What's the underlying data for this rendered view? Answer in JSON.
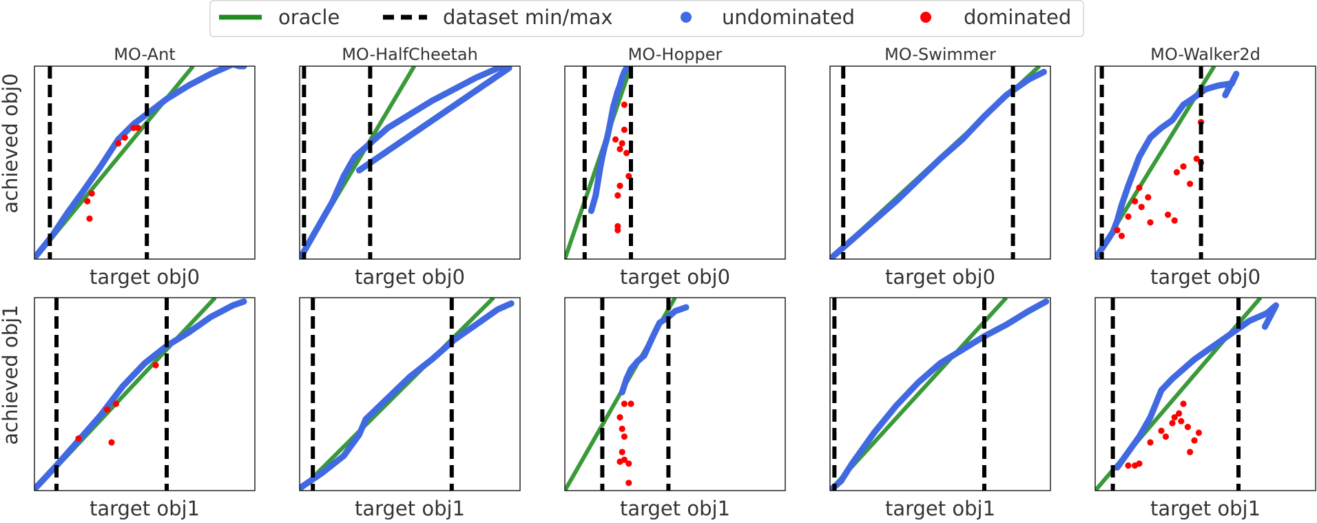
{
  "colors": {
    "oracle": "#3a9a3a",
    "minmax": "#000000",
    "undominated": "#4169e1",
    "dominated": "#ff0000",
    "frame": "#000000"
  },
  "legend": {
    "items": [
      {
        "label": "oracle",
        "marker": "line",
        "color": "#1f8a1f"
      },
      {
        "label": "dataset min/max",
        "marker": "dashed-line",
        "color": "#000000"
      },
      {
        "label": "undominated",
        "marker": "dot",
        "color": "#4169e1"
      },
      {
        "label": "dominated",
        "marker": "dot",
        "color": "#ff0000"
      }
    ]
  },
  "row_labels": [
    "achieved obj0",
    "achieved obj1"
  ],
  "chart_data": [
    {
      "type": "scatter",
      "title": "MO-Ant",
      "xlabel": "target obj0",
      "ylabel": "achieved obj0",
      "xlim": [
        0,
        1
      ],
      "ylim": [
        0,
        1
      ],
      "minmax": [
        0.07,
        0.51
      ],
      "oracle": [
        [
          0,
          0
        ],
        [
          0.72,
          1
        ]
      ],
      "undominated": [
        [
          0.01,
          0.02
        ],
        [
          0.08,
          0.12
        ],
        [
          0.15,
          0.24
        ],
        [
          0.22,
          0.35
        ],
        [
          0.3,
          0.48
        ],
        [
          0.38,
          0.62
        ],
        [
          0.45,
          0.7
        ],
        [
          0.52,
          0.76
        ],
        [
          0.6,
          0.83
        ],
        [
          0.7,
          0.9
        ],
        [
          0.8,
          0.96
        ],
        [
          0.9,
          1.01
        ],
        [
          0.93,
          1.0
        ],
        [
          0.95,
          1.0
        ]
      ],
      "dominated": [
        [
          0.24,
          0.3
        ],
        [
          0.26,
          0.34
        ],
        [
          0.38,
          0.6
        ],
        [
          0.41,
          0.63
        ],
        [
          0.45,
          0.68
        ],
        [
          0.47,
          0.68
        ],
        [
          0.25,
          0.21
        ]
      ]
    },
    {
      "type": "scatter",
      "title": "MO-HalfCheetah",
      "xlabel": "target obj0",
      "ylabel": "",
      "xlim": [
        0,
        1
      ],
      "ylim": [
        0,
        1
      ],
      "minmax": [
        0.02,
        0.32
      ],
      "oracle": [
        [
          0,
          0
        ],
        [
          0.52,
          1
        ]
      ],
      "undominated": [
        [
          0.01,
          0.02
        ],
        [
          0.05,
          0.1
        ],
        [
          0.1,
          0.2
        ],
        [
          0.15,
          0.3
        ],
        [
          0.2,
          0.43
        ],
        [
          0.25,
          0.53
        ],
        [
          0.3,
          0.58
        ],
        [
          0.4,
          0.68
        ],
        [
          0.5,
          0.75
        ],
        [
          0.6,
          0.82
        ],
        [
          0.7,
          0.88
        ],
        [
          0.8,
          0.94
        ],
        [
          0.9,
          0.99
        ],
        [
          0.95,
          0.99
        ],
        [
          0.27,
          0.46
        ]
      ],
      "dominated": []
    },
    {
      "type": "scatter",
      "title": "MO-Hopper",
      "xlabel": "target obj0",
      "ylabel": "",
      "xlim": [
        0,
        1
      ],
      "ylim": [
        0,
        1
      ],
      "minmax": [
        0.09,
        0.3
      ],
      "oracle": [
        [
          0,
          0
        ],
        [
          0.3,
          1
        ]
      ],
      "undominated": [
        [
          0.12,
          0.25
        ],
        [
          0.14,
          0.33
        ],
        [
          0.15,
          0.4
        ],
        [
          0.16,
          0.47
        ],
        [
          0.17,
          0.53
        ],
        [
          0.18,
          0.58
        ],
        [
          0.19,
          0.62
        ],
        [
          0.2,
          0.67
        ],
        [
          0.21,
          0.73
        ],
        [
          0.22,
          0.79
        ],
        [
          0.23,
          0.83
        ],
        [
          0.24,
          0.87
        ],
        [
          0.25,
          0.9
        ],
        [
          0.26,
          0.94
        ],
        [
          0.27,
          0.97
        ],
        [
          0.28,
          0.99
        ]
      ],
      "dominated": [
        [
          0.23,
          0.62
        ],
        [
          0.25,
          0.57
        ],
        [
          0.26,
          0.6
        ],
        [
          0.27,
          0.67
        ],
        [
          0.28,
          0.55
        ],
        [
          0.25,
          0.38
        ],
        [
          0.24,
          0.33
        ],
        [
          0.29,
          0.43
        ],
        [
          0.24,
          0.17
        ],
        [
          0.24,
          0.15
        ],
        [
          0.27,
          0.8
        ]
      ]
    },
    {
      "type": "scatter",
      "title": "MO-Swimmer",
      "xlabel": "target obj0",
      "ylabel": "",
      "xlim": [
        0,
        1
      ],
      "ylim": [
        0,
        1
      ],
      "minmax": [
        0.06,
        0.83
      ],
      "oracle": [
        [
          0,
          0
        ],
        [
          0.95,
          1
        ]
      ],
      "undominated": [
        [
          0.01,
          0.01
        ],
        [
          0.1,
          0.1
        ],
        [
          0.2,
          0.2
        ],
        [
          0.3,
          0.3
        ],
        [
          0.4,
          0.41
        ],
        [
          0.5,
          0.52
        ],
        [
          0.6,
          0.62
        ],
        [
          0.7,
          0.74
        ],
        [
          0.8,
          0.85
        ],
        [
          0.9,
          0.93
        ],
        [
          0.97,
          0.97
        ]
      ],
      "dominated": []
    },
    {
      "type": "scatter",
      "title": "MO-Walker2d",
      "xlabel": "target obj0",
      "ylabel": "",
      "xlim": [
        0,
        1
      ],
      "ylim": [
        0,
        1
      ],
      "minmax": [
        0.03,
        0.48
      ],
      "oracle": [
        [
          0,
          0
        ],
        [
          0.54,
          1
        ]
      ],
      "undominated": [
        [
          0.01,
          0.02
        ],
        [
          0.04,
          0.07
        ],
        [
          0.08,
          0.14
        ],
        [
          0.1,
          0.2
        ],
        [
          0.12,
          0.28
        ],
        [
          0.15,
          0.38
        ],
        [
          0.2,
          0.53
        ],
        [
          0.25,
          0.63
        ],
        [
          0.3,
          0.68
        ],
        [
          0.35,
          0.72
        ],
        [
          0.4,
          0.8
        ],
        [
          0.44,
          0.83
        ],
        [
          0.5,
          0.88
        ],
        [
          0.56,
          0.9
        ],
        [
          0.62,
          0.91
        ],
        [
          0.64,
          0.96
        ],
        [
          0.59,
          0.85
        ]
      ],
      "dominated": [
        [
          0.1,
          0.15
        ],
        [
          0.12,
          0.12
        ],
        [
          0.15,
          0.22
        ],
        [
          0.18,
          0.3
        ],
        [
          0.21,
          0.27
        ],
        [
          0.24,
          0.32
        ],
        [
          0.25,
          0.19
        ],
        [
          0.33,
          0.23
        ],
        [
          0.36,
          0.2
        ],
        [
          0.37,
          0.45
        ],
        [
          0.4,
          0.48
        ],
        [
          0.46,
          0.52
        ],
        [
          0.48,
          0.5
        ],
        [
          0.43,
          0.39
        ],
        [
          0.2,
          0.37
        ],
        [
          0.48,
          0.71
        ]
      ]
    },
    {
      "type": "scatter",
      "title": "",
      "xlabel": "target obj1",
      "ylabel": "achieved obj1",
      "xlim": [
        0,
        1
      ],
      "ylim": [
        0,
        1
      ],
      "minmax": [
        0.1,
        0.6
      ],
      "oracle": [
        [
          0,
          0
        ],
        [
          0.82,
          1
        ]
      ],
      "undominated": [
        [
          0.01,
          0.02
        ],
        [
          0.1,
          0.13
        ],
        [
          0.2,
          0.26
        ],
        [
          0.3,
          0.39
        ],
        [
          0.4,
          0.54
        ],
        [
          0.5,
          0.66
        ],
        [
          0.6,
          0.75
        ],
        [
          0.7,
          0.82
        ],
        [
          0.8,
          0.9
        ],
        [
          0.9,
          0.96
        ],
        [
          0.95,
          0.98
        ]
      ],
      "dominated": [
        [
          0.2,
          0.27
        ],
        [
          0.37,
          0.45
        ],
        [
          0.55,
          0.65
        ],
        [
          0.33,
          0.42
        ],
        [
          0.35,
          0.25
        ]
      ]
    },
    {
      "type": "scatter",
      "title": "",
      "xlabel": "target obj1",
      "ylabel": "",
      "xlim": [
        0,
        1
      ],
      "ylim": [
        0,
        1
      ],
      "minmax": [
        0.06,
        0.69
      ],
      "oracle": [
        [
          0,
          0
        ],
        [
          0.88,
          1
        ]
      ],
      "undominated": [
        [
          0.01,
          0.02
        ],
        [
          0.1,
          0.09
        ],
        [
          0.2,
          0.18
        ],
        [
          0.27,
          0.29
        ],
        [
          0.3,
          0.37
        ],
        [
          0.4,
          0.48
        ],
        [
          0.5,
          0.59
        ],
        [
          0.6,
          0.68
        ],
        [
          0.7,
          0.78
        ],
        [
          0.8,
          0.86
        ],
        [
          0.9,
          0.94
        ],
        [
          0.96,
          0.97
        ]
      ],
      "dominated": []
    },
    {
      "type": "scatter",
      "title": "",
      "xlabel": "target obj1",
      "ylabel": "",
      "xlim": [
        0,
        1
      ],
      "ylim": [
        0,
        1
      ],
      "minmax": [
        0.17,
        0.47
      ],
      "oracle": [
        [
          0,
          0
        ],
        [
          0.5,
          1
        ]
      ],
      "undominated": [
        [
          0.26,
          0.51
        ],
        [
          0.28,
          0.58
        ],
        [
          0.3,
          0.63
        ],
        [
          0.33,
          0.67
        ],
        [
          0.36,
          0.7
        ],
        [
          0.4,
          0.8
        ],
        [
          0.43,
          0.87
        ],
        [
          0.47,
          0.9
        ],
        [
          0.5,
          0.93
        ],
        [
          0.55,
          0.95
        ]
      ],
      "dominated": [
        [
          0.27,
          0.45
        ],
        [
          0.25,
          0.38
        ],
        [
          0.26,
          0.32
        ],
        [
          0.27,
          0.28
        ],
        [
          0.26,
          0.2
        ],
        [
          0.25,
          0.15
        ],
        [
          0.27,
          0.16
        ],
        [
          0.29,
          0.14
        ],
        [
          0.3,
          0.45
        ],
        [
          0.29,
          0.04
        ]
      ]
    },
    {
      "type": "scatter",
      "title": "",
      "xlabel": "target obj1",
      "ylabel": "",
      "xlim": [
        0,
        1
      ],
      "ylim": [
        0,
        1
      ],
      "minmax": [
        0.02,
        0.7
      ],
      "oracle": [
        [
          0,
          0
        ],
        [
          0.8,
          1
        ]
      ],
      "undominated": [
        [
          0.01,
          0.01
        ],
        [
          0.05,
          0.05
        ],
        [
          0.1,
          0.14
        ],
        [
          0.2,
          0.3
        ],
        [
          0.3,
          0.44
        ],
        [
          0.4,
          0.56
        ],
        [
          0.5,
          0.66
        ],
        [
          0.6,
          0.73
        ],
        [
          0.7,
          0.8
        ],
        [
          0.8,
          0.86
        ],
        [
          0.9,
          0.93
        ],
        [
          0.98,
          0.98
        ]
      ],
      "dominated": []
    },
    {
      "type": "scatter",
      "title": "",
      "xlabel": "target obj1",
      "ylabel": "",
      "xlim": [
        0,
        1
      ],
      "ylim": [
        0,
        1
      ],
      "minmax": [
        0.08,
        0.65
      ],
      "oracle": [
        [
          0,
          0
        ],
        [
          0.75,
          1
        ]
      ],
      "undominated": [
        [
          0.1,
          0.12
        ],
        [
          0.15,
          0.2
        ],
        [
          0.2,
          0.28
        ],
        [
          0.25,
          0.38
        ],
        [
          0.3,
          0.52
        ],
        [
          0.35,
          0.58
        ],
        [
          0.4,
          0.63
        ],
        [
          0.45,
          0.68
        ],
        [
          0.5,
          0.72
        ],
        [
          0.55,
          0.76
        ],
        [
          0.6,
          0.8
        ],
        [
          0.7,
          0.88
        ],
        [
          0.78,
          0.92
        ],
        [
          0.82,
          0.96
        ],
        [
          0.77,
          0.85
        ]
      ],
      "dominated": [
        [
          0.15,
          0.13
        ],
        [
          0.18,
          0.13
        ],
        [
          0.2,
          0.14
        ],
        [
          0.25,
          0.25
        ],
        [
          0.3,
          0.31
        ],
        [
          0.32,
          0.28
        ],
        [
          0.35,
          0.35
        ],
        [
          0.36,
          0.38
        ],
        [
          0.38,
          0.4
        ],
        [
          0.4,
          0.45
        ],
        [
          0.43,
          0.2
        ],
        [
          0.45,
          0.26
        ],
        [
          0.47,
          0.3
        ],
        [
          0.42,
          0.33
        ],
        [
          0.39,
          0.36
        ]
      ]
    }
  ]
}
